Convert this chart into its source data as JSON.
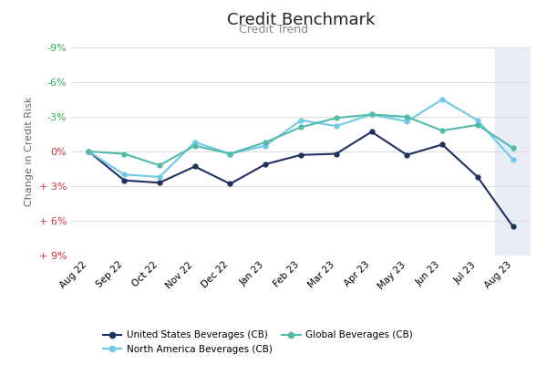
{
  "title": "Credit Benchmark",
  "subtitle": "Credit Trend",
  "ylabel": "Change in Credit Risk",
  "x_labels": [
    "Aug 22",
    "Sep 22",
    "Oct 22",
    "Nov 22",
    "Dec 22",
    "Jan 23",
    "Feb 23",
    "Mar 23",
    "Apr 23",
    "May 23",
    "Jun 23",
    "Jul 23",
    "Aug 23"
  ],
  "us_beverages": [
    0.0,
    2.5,
    2.7,
    1.3,
    2.8,
    1.1,
    0.3,
    0.2,
    -1.7,
    0.3,
    -0.6,
    2.2,
    6.5
  ],
  "na_beverages": [
    0.0,
    2.0,
    2.2,
    -0.8,
    0.2,
    -0.5,
    -2.7,
    -2.2,
    -3.2,
    -2.6,
    -4.5,
    -2.7,
    0.7
  ],
  "global_beverages": [
    0.0,
    0.2,
    1.2,
    -0.5,
    0.2,
    -0.8,
    -2.1,
    -2.9,
    -3.2,
    -3.0,
    -1.8,
    -2.3,
    -0.3
  ],
  "us_color": "#1f3060",
  "na_color": "#70c8e8",
  "global_color": "#50bba8",
  "ytick_values": [
    -9,
    -6,
    -3,
    0,
    3,
    6,
    9
  ],
  "ytick_labels": [
    "-9%",
    "-6%",
    "-3%",
    "0%",
    "+ 3%",
    "+ 6%",
    "+ 9%"
  ],
  "ytick_colors": [
    "#33aa55",
    "#33aa55",
    "#33aa55",
    "#cc3333",
    "#cc3333",
    "#cc3333",
    "#cc3333"
  ],
  "ylim_min": -9,
  "ylim_max": 9,
  "shaded_last_n": 1,
  "shaded_color": "#e8ecf5",
  "background_color": "#ffffff",
  "grid_color": "#d8d8d8",
  "legend_labels": [
    "United States Beverages (CB)",
    "North America Beverages (CB)",
    "Global Beverages (CB)"
  ]
}
